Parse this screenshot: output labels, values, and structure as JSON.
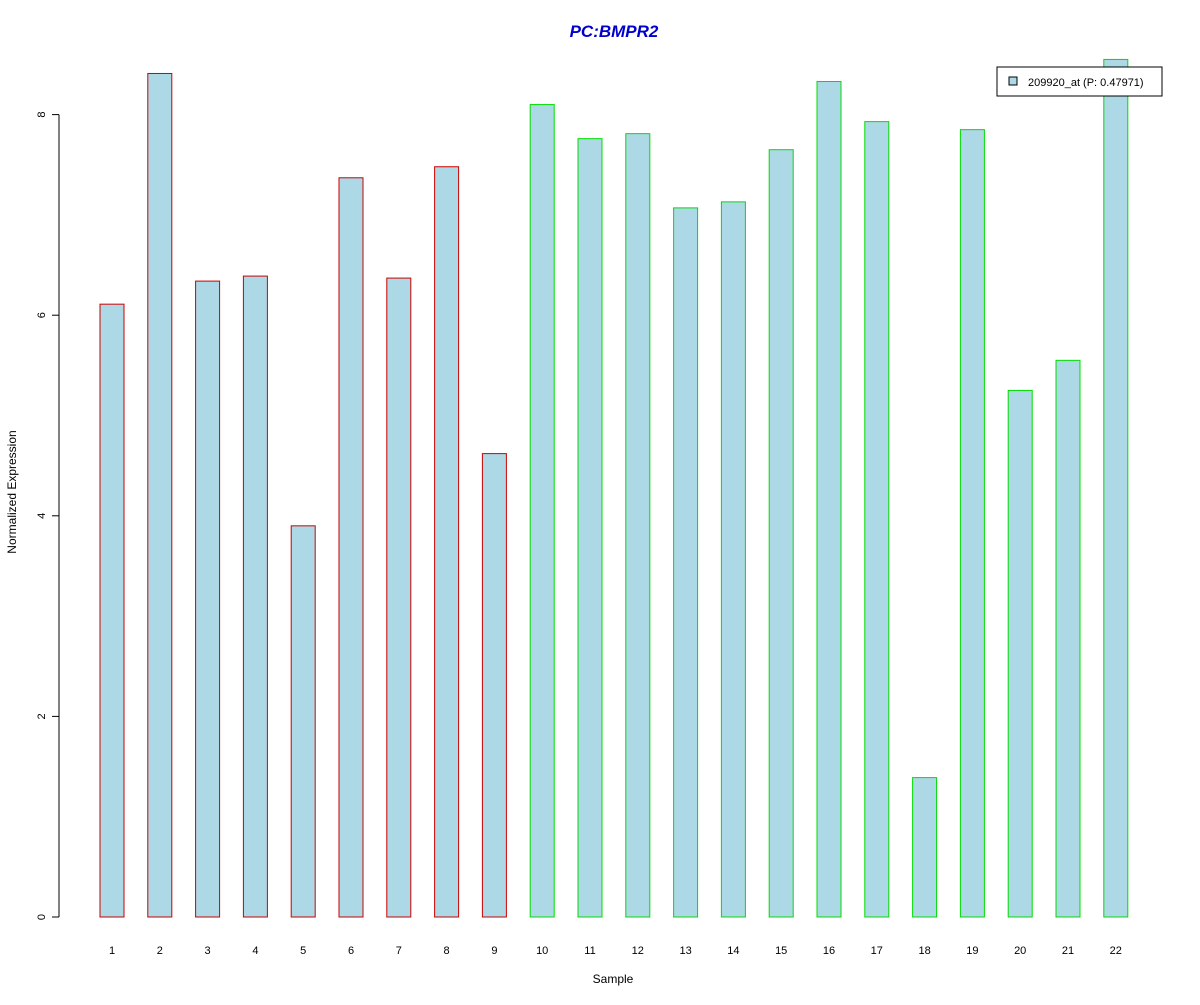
{
  "chart_data": {
    "type": "bar",
    "title": "PC:BMPR2",
    "xlabel": "Sample",
    "ylabel": "Normalized Expression",
    "categories": [
      "1",
      "2",
      "3",
      "4",
      "5",
      "6",
      "7",
      "8",
      "9",
      "10",
      "11",
      "12",
      "13",
      "14",
      "15",
      "16",
      "17",
      "18",
      "19",
      "20",
      "21",
      "22"
    ],
    "series": [
      {
        "name": "209920_at (P: 0.47971)",
        "values": [
          6.11,
          8.41,
          6.34,
          6.39,
          3.9,
          7.37,
          6.37,
          7.48,
          4.62,
          8.1,
          7.76,
          7.81,
          7.07,
          7.13,
          7.65,
          8.33,
          7.93,
          1.39,
          7.85,
          5.25,
          5.55,
          8.55
        ]
      }
    ],
    "groups": [
      {
        "samples": [
          1,
          9
        ],
        "border_color": "#cc0000"
      },
      {
        "samples": [
          10,
          22
        ],
        "border_color": "#00dd00"
      }
    ],
    "yticks": [
      0,
      2,
      4,
      6,
      8
    ],
    "ylim": [
      0,
      8.6
    ],
    "grid": false,
    "legend_position": "top-right",
    "colors": {
      "bar_fill": "#add8e6",
      "title": "#0000cc",
      "group1_border": "#cc0000",
      "group2_border": "#00dd00"
    }
  }
}
